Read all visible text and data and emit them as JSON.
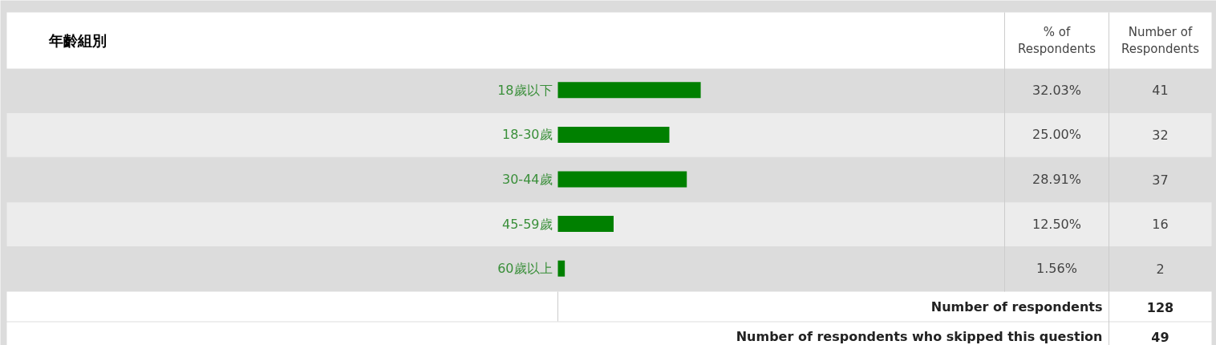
{
  "chart_data": {
    "type": "bar",
    "orientation": "horizontal",
    "title": "年齡組別",
    "categories": [
      "18歲以下",
      "18-30歲",
      "30-44歲",
      "45-59歲",
      "60歲以上"
    ],
    "series": [
      {
        "color": "#008000",
        "values": [
          32.03,
          25.0,
          28.91,
          12.5,
          1.56
        ],
        "value_labels": [
          "32.03%",
          "25.00%",
          "28.91%",
          "12.50%",
          "1.56%"
        ]
      }
    ],
    "xlim": [
      0,
      100
    ],
    "tick_labels": false,
    "grid": false,
    "annotations": [
      "% of\nRespondents",
      "Number of\nRespondents",
      "41",
      "32",
      "37",
      "16",
      "2",
      "Number of respondents",
      "128",
      "Number of respondents who skipped this question",
      "49"
    ]
  }
}
